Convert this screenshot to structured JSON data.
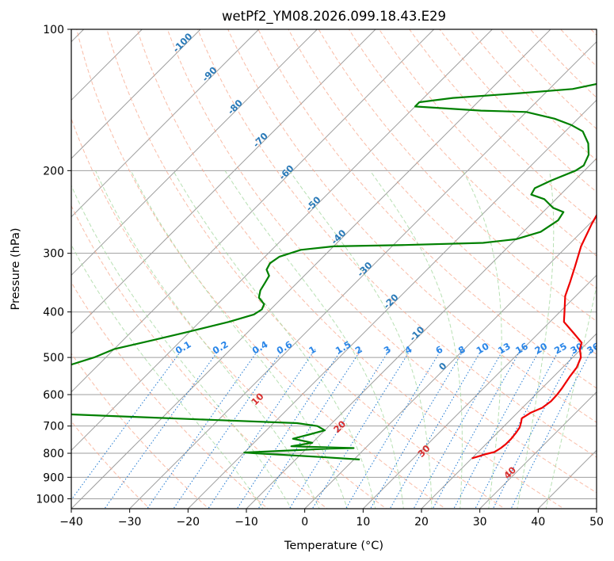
{
  "chart_data": {
    "type": "line",
    "subtype": "skew-T log-P diagram",
    "title": "wetPf2_YM08.2026.099.18.43.E29",
    "xlabel": "Temperature (°C)",
    "ylabel": "Pressure (hPa)",
    "xlim": [
      -40,
      50
    ],
    "ylim": [
      1050,
      100
    ],
    "x_ticks": [
      -40,
      -30,
      -20,
      -10,
      0,
      10,
      20,
      30,
      40,
      50
    ],
    "y_ticks": [
      100,
      200,
      300,
      400,
      500,
      600,
      700,
      800,
      900,
      1000
    ],
    "grid": true,
    "colors": {
      "temperature": "#ee0000",
      "dewpoint": "#008000",
      "isotherm": "#9e9e9e",
      "dry_adiabat": "#f7a68a",
      "moist_adiabat": "#a6d8a0",
      "mixing_ratio": "#1f78d1",
      "isotherm_label": "#2a7ab8",
      "dry_label": "#d62f2f",
      "mixing_label": "#2a86e8"
    },
    "isotherm_labels": [
      "-100",
      "-90",
      "-80",
      "-70",
      "-60",
      "-50",
      "-40",
      "-30",
      "-20",
      "-10",
      "0"
    ],
    "dry_adiabat_labels": [
      "10",
      "20",
      "30",
      "40"
    ],
    "mixing_ratio_labels": [
      "0.1",
      "0.2",
      "0.4",
      "0.6",
      "1",
      "1.5",
      "2",
      "3",
      "4",
      "6",
      "8",
      "10",
      "13",
      "16",
      "20",
      "25",
      "30",
      "36"
    ],
    "series": [
      {
        "name": "Temperature",
        "points": [
          [
            20,
            820
          ],
          [
            20.8,
            812
          ],
          [
            21.7,
            803
          ],
          [
            22.8,
            795
          ],
          [
            23.2,
            780
          ],
          [
            23.4,
            765
          ],
          [
            23.4,
            745
          ],
          [
            23.2,
            725
          ],
          [
            22.9,
            705
          ],
          [
            22.3,
            688
          ],
          [
            21.7,
            674
          ],
          [
            22.3,
            655
          ],
          [
            23.4,
            640
          ],
          [
            23.8,
            620
          ],
          [
            23.7,
            600
          ],
          [
            23.4,
            580
          ],
          [
            22.8,
            550
          ],
          [
            22.4,
            525
          ],
          [
            21.4,
            500
          ],
          [
            19.8,
            480
          ],
          [
            19,
            465
          ],
          [
            15.9,
            443
          ],
          [
            12.4,
            420
          ],
          [
            10.8,
            400
          ],
          [
            8.2,
            370
          ],
          [
            6.6,
            345
          ],
          [
            4.8,
            320
          ],
          [
            2.4,
            290
          ],
          [
            0.4,
            260
          ],
          [
            -0.5,
            245
          ],
          [
            -1.4,
            230
          ],
          [
            -2.1,
            215
          ],
          [
            -2.2,
            205
          ],
          [
            -1.6,
            198
          ],
          [
            0.2,
            190
          ],
          [
            2.7,
            180
          ],
          [
            6.2,
            170
          ],
          [
            8.8,
            162
          ],
          [
            10.5,
            156
          ],
          [
            10.7,
            150
          ],
          [
            10.5,
            143
          ],
          [
            10.3,
            135
          ],
          [
            10.5,
            128
          ],
          [
            11.5,
            120
          ],
          [
            12.5,
            110
          ],
          [
            13.4,
            100
          ]
        ]
      },
      {
        "name": "Dewpoint",
        "points": [
          [
            1,
            825
          ],
          [
            -6,
            815
          ],
          [
            -18,
            800
          ],
          [
            -20,
            797
          ],
          [
            -6,
            782
          ],
          [
            -2,
            780
          ],
          [
            -13,
            773
          ],
          [
            -10,
            760
          ],
          [
            -14,
            745
          ],
          [
            -12,
            730
          ],
          [
            -10,
            715
          ],
          [
            -12,
            700
          ],
          [
            -16,
            690
          ],
          [
            -30,
            680
          ],
          [
            -44,
            670
          ],
          [
            -58,
            660
          ],
          [
            -70,
            640
          ],
          [
            -80,
            620
          ],
          [
            -90,
            600
          ],
          [
            -80,
            570
          ],
          [
            -70,
            540
          ],
          [
            -65,
            520
          ],
          [
            -62,
            500
          ],
          [
            -60,
            480
          ],
          [
            -55,
            460
          ],
          [
            -50,
            440
          ],
          [
            -45,
            420
          ],
          [
            -42,
            405
          ],
          [
            -41.5,
            395
          ],
          [
            -42,
            385
          ],
          [
            -44,
            373
          ],
          [
            -45,
            360
          ],
          [
            -45.5,
            347
          ],
          [
            -46,
            335
          ],
          [
            -47.5,
            325
          ],
          [
            -48,
            315
          ],
          [
            -47.5,
            305
          ],
          [
            -45,
            295
          ],
          [
            -40,
            290
          ],
          [
            -28,
            288
          ],
          [
            -15,
            285
          ],
          [
            -10,
            280
          ],
          [
            -7,
            270
          ],
          [
            -6,
            255
          ],
          [
            -6.5,
            245
          ],
          [
            -9,
            240
          ],
          [
            -12,
            230
          ],
          [
            -15,
            225
          ],
          [
            -15.5,
            218
          ],
          [
            -14,
            210
          ],
          [
            -11.5,
            200
          ],
          [
            -11,
            195
          ],
          [
            -12,
            185
          ],
          [
            -14,
            175
          ],
          [
            -17,
            165
          ],
          [
            -20,
            160
          ],
          [
            -24,
            155
          ],
          [
            -30,
            150
          ],
          [
            -38,
            149
          ],
          [
            -46,
            147
          ],
          [
            -50,
            146
          ],
          [
            -50,
            143
          ],
          [
            -45,
            140
          ],
          [
            -35,
            137
          ],
          [
            -26,
            134
          ],
          [
            -22,
            130
          ],
          [
            -21,
            125
          ],
          [
            -21,
            120
          ],
          [
            -20,
            115
          ],
          [
            -16,
            110
          ],
          [
            -10,
            105
          ],
          [
            -2,
            100
          ]
        ]
      }
    ]
  }
}
